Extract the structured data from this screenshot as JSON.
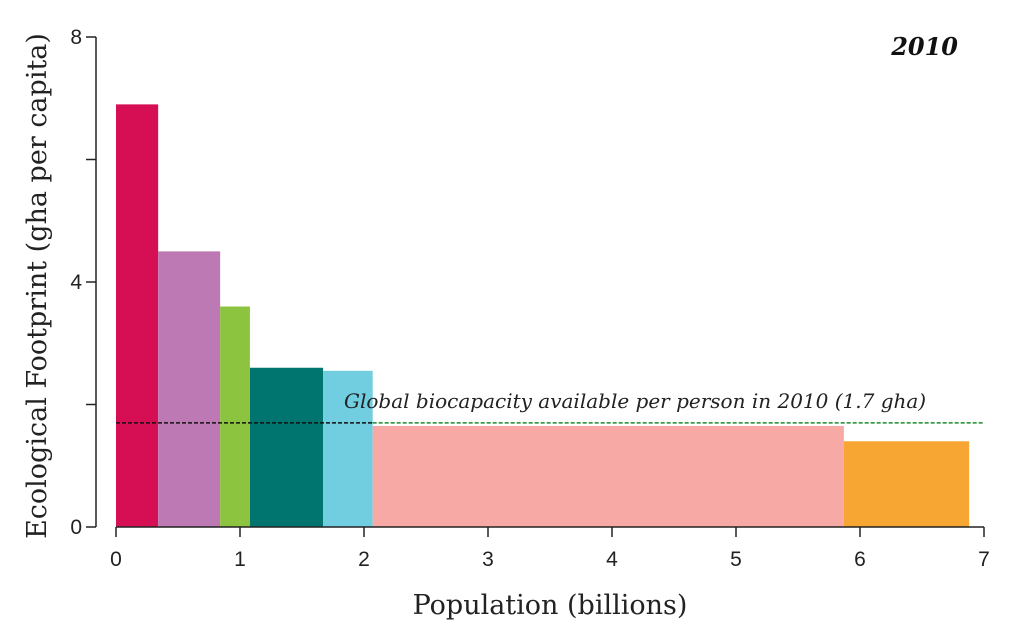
{
  "chart_data": {
    "type": "bar",
    "title": "2010",
    "xlabel": "Population (billions)",
    "ylabel": "Ecological Footprint (gha per capita)",
    "xlim": [
      0,
      7
    ],
    "ylim": [
      0,
      8
    ],
    "x_ticks": [
      0,
      1,
      2,
      3,
      4,
      5,
      6,
      7
    ],
    "y_ticks": [
      0,
      4,
      8
    ],
    "y_minor_ticks": [
      2,
      6
    ],
    "grid": false,
    "legend": "none",
    "bars": [
      {
        "x_start": 0.0,
        "x_end": 0.34,
        "value": 6.9,
        "color": "#d60f55"
      },
      {
        "x_start": 0.34,
        "x_end": 0.84,
        "value": 4.5,
        "color": "#bc79b4"
      },
      {
        "x_start": 0.84,
        "x_end": 1.08,
        "value": 3.6,
        "color": "#8cc43f"
      },
      {
        "x_start": 1.08,
        "x_end": 1.67,
        "value": 2.6,
        "color": "#007570"
      },
      {
        "x_start": 1.67,
        "x_end": 2.07,
        "value": 2.55,
        "color": "#71cde0"
      },
      {
        "x_start": 2.07,
        "x_end": 5.87,
        "value": 1.65,
        "color": "#f7aaa5"
      },
      {
        "x_start": 5.87,
        "x_end": 6.88,
        "value": 1.4,
        "color": "#f7a533"
      }
    ],
    "reference_line": {
      "value": 1.7,
      "label": "Global biocapacity available per person in 2010 (1.7 gha)",
      "color_dark": "#111111",
      "color_green": "#1a8a2a"
    }
  }
}
